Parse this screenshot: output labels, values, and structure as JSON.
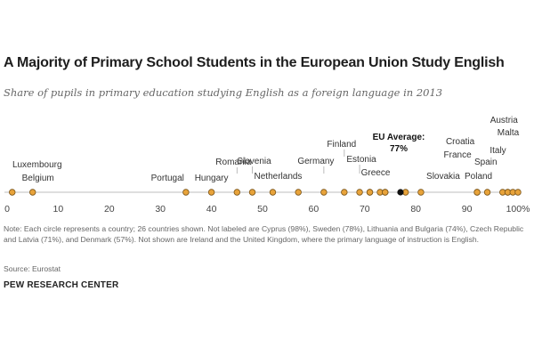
{
  "title": "A Majority of Primary School Students in the European Union Study English",
  "subtitle": "Share of pupils in primary education studying English as a foreign language in 2013",
  "note": "Note: Each circle represents a country; 26 countries shown. Not labeled are Cyprus (98%), Sweden (78%), Lithuania and Bulgaria (74%), Czech Republic and Latvia (71%), and Denmark (57%). Not shown are Ireland and the United Kingdom, where the primary language of instruction is English.",
  "source": "Source: Eurostat",
  "organization": "PEW RESEARCH CENTER",
  "colors": {
    "dot": "#e8a33a",
    "dot_stroke": "#7a5418",
    "average": "#111111",
    "axis": "#bdbdbd",
    "leader": "#aaaaaa"
  },
  "chart_data": {
    "type": "scatter",
    "xlim": [
      0,
      100
    ],
    "ticks": [
      "0",
      "10",
      "20",
      "30",
      "40",
      "50",
      "60",
      "70",
      "80",
      "90",
      "100%"
    ],
    "tick_values": [
      0,
      10,
      20,
      30,
      40,
      50,
      60,
      70,
      80,
      90,
      100
    ],
    "average": {
      "label": "EU Average:",
      "value_label": "77%",
      "value": 77
    },
    "points": [
      {
        "label": "Luxembourg",
        "value": 1
      },
      {
        "label": "Belgium",
        "value": 5
      },
      {
        "label": "Portugal",
        "value": 35
      },
      {
        "label": "Hungary",
        "value": 40
      },
      {
        "label": "Romania",
        "value": 45
      },
      {
        "label": "Slovenia",
        "value": 48
      },
      {
        "label": "Netherlands",
        "value": 52
      },
      {
        "label": "",
        "value": 57
      },
      {
        "label": "Germany",
        "value": 62
      },
      {
        "label": "Finland",
        "value": 66
      },
      {
        "label": "Estonia",
        "value": 69
      },
      {
        "label": "",
        "value": 71
      },
      {
        "label": "",
        "value": 71
      },
      {
        "label": "Greece",
        "value": 73
      },
      {
        "label": "",
        "value": 74
      },
      {
        "label": "",
        "value": 74
      },
      {
        "label": "",
        "value": 78
      },
      {
        "label": "Slovakia",
        "value": 81
      },
      {
        "label": "Croatia",
        "value": 92
      },
      {
        "label": "France",
        "value": 92
      },
      {
        "label": "Poland",
        "value": 94
      },
      {
        "label": "Spain",
        "value": 97
      },
      {
        "label": "Italy",
        "value": 98
      },
      {
        "label": "",
        "value": 98
      },
      {
        "label": "Austria",
        "value": 99
      },
      {
        "label": "Malta",
        "value": 100
      }
    ]
  }
}
